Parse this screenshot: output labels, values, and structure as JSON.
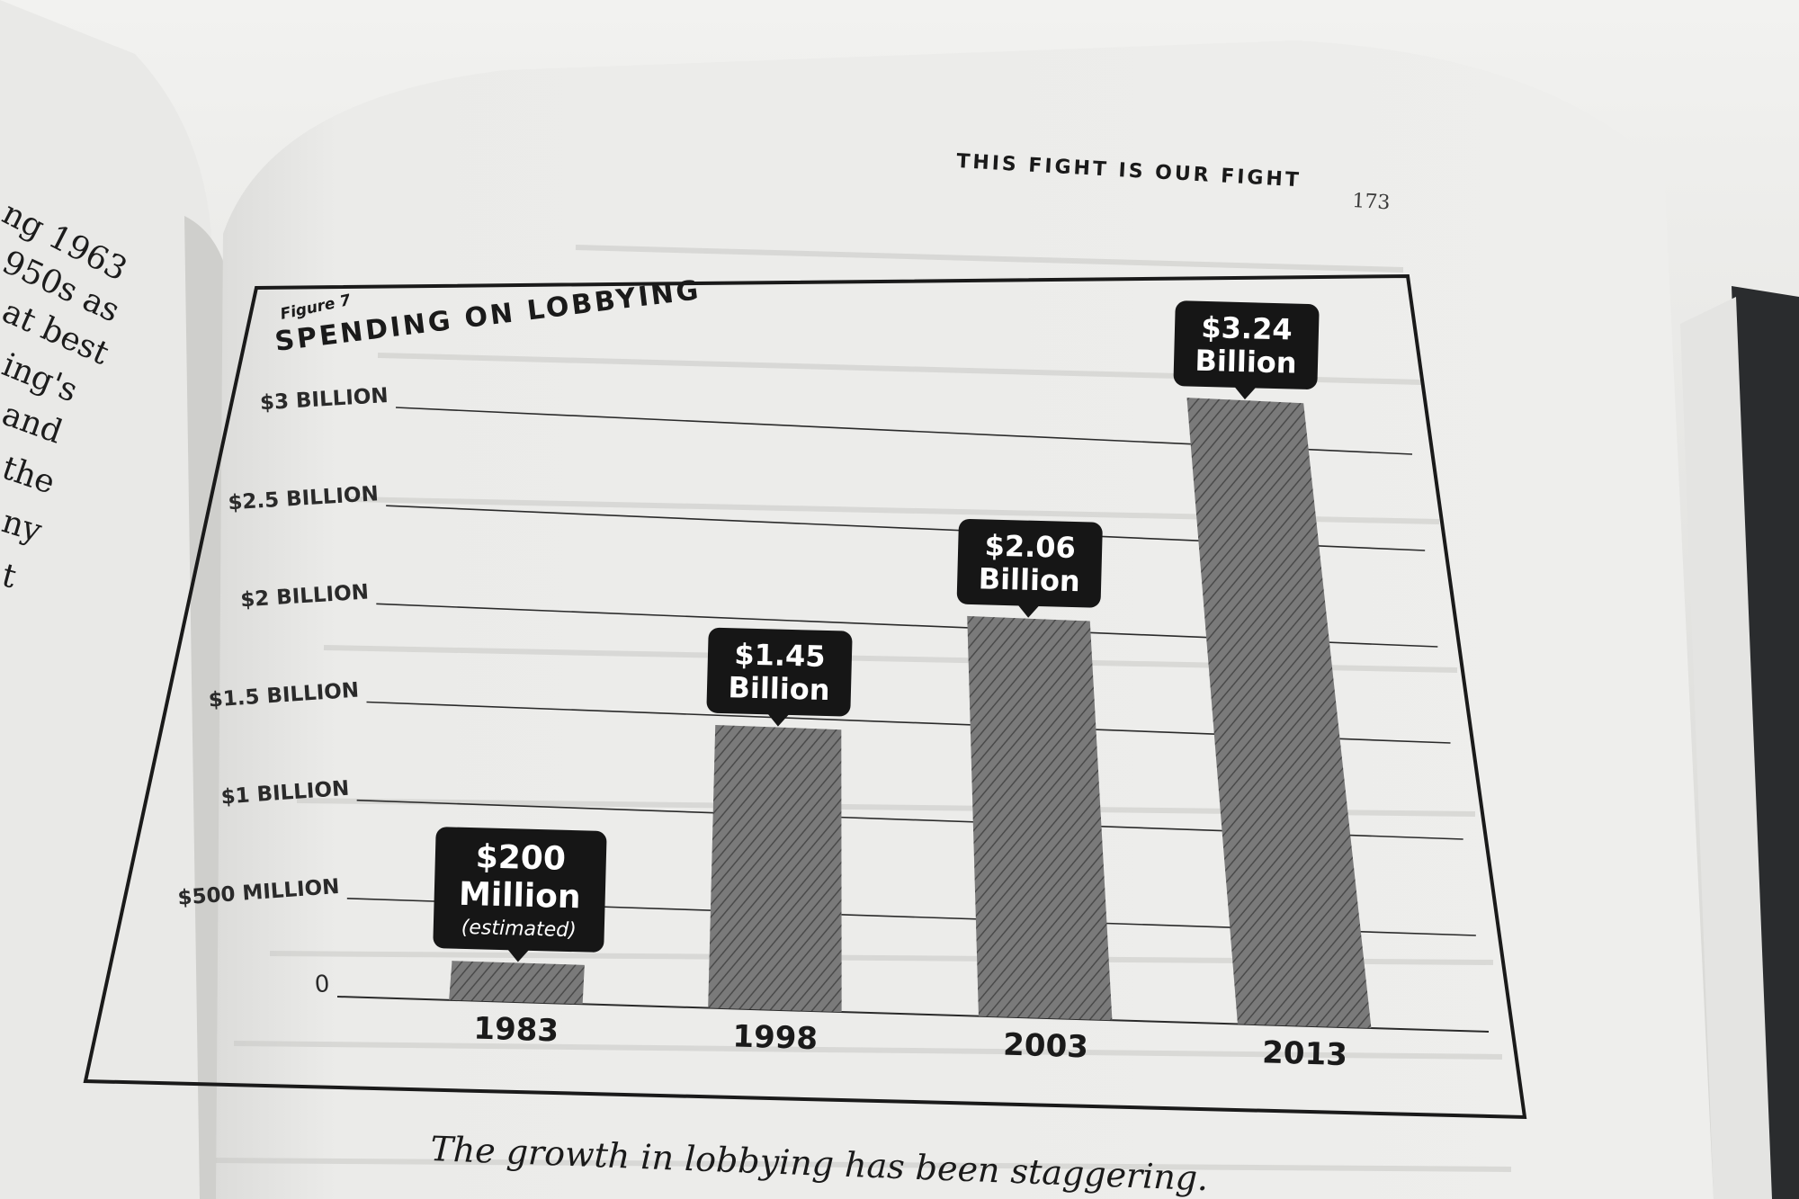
{
  "left_page": {
    "fragments": [
      "ng 1963",
      "950s as",
      "at best",
      "ing's",
      "and",
      "the",
      "ny",
      "t"
    ]
  },
  "header": {
    "running_title": "THIS FIGHT IS OUR FIGHT",
    "page_number": "173"
  },
  "figure": {
    "label": "Figure 7",
    "title": "SPENDING ON LOBBYING",
    "caption": "The growth in lobbying has been staggering."
  },
  "chart_data": {
    "type": "bar",
    "title": "SPENDING ON LOBBYING",
    "categories": [
      "1983",
      "1998",
      "2003",
      "2013"
    ],
    "values": [
      0.2,
      1.45,
      2.06,
      3.24
    ],
    "value_unit": "billion USD",
    "ylim": [
      0,
      3
    ],
    "y_ticks": [
      {
        "value": 0,
        "label": "0"
      },
      {
        "value": 0.5,
        "label": "$500 MILLION"
      },
      {
        "value": 1,
        "label": "$1 BILLION"
      },
      {
        "value": 1.5,
        "label": "$1.5 BILLION"
      },
      {
        "value": 2,
        "label": "$2 BILLION"
      },
      {
        "value": 2.5,
        "label": "$2.5 BILLION"
      },
      {
        "value": 3,
        "label": "$3 BILLION"
      }
    ],
    "data_labels": [
      {
        "line1": "$200",
        "line2": "Million",
        "note": "(estimated)"
      },
      {
        "line1": "$1.45",
        "line2": "Billion"
      },
      {
        "line1": "$2.06",
        "line2": "Billion"
      },
      {
        "line1": "$3.24",
        "line2": "Billion"
      }
    ],
    "grid": true,
    "bar_fill": "diagonal-hatch"
  },
  "colors": {
    "paper": "#ececea",
    "ink": "#1a1a1a",
    "bar": "#6f6f6f",
    "callout": "#161616"
  }
}
